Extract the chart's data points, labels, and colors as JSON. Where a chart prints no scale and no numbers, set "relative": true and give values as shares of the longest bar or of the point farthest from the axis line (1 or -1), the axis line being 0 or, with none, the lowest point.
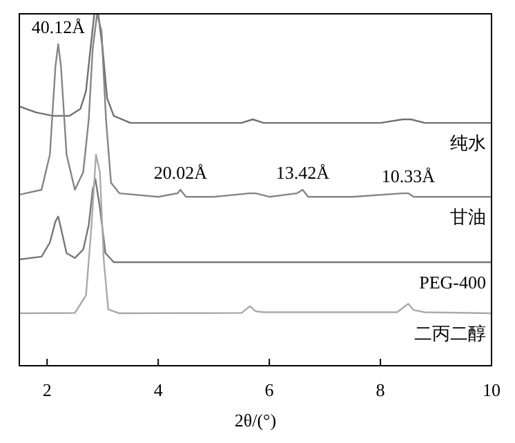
{
  "chart_data": {
    "type": "line",
    "relative": true,
    "xlabel": "2θ/(°)",
    "xlim": [
      1.5,
      10
    ],
    "xticks": [
      2,
      4,
      6,
      8,
      10
    ],
    "tick_labels": "x",
    "line_style": "solid",
    "series": [
      {
        "name": "纯水",
        "color": "#707070",
        "x": [
          1.5,
          1.8,
          2.1,
          2.4,
          2.6,
          2.7,
          2.78,
          2.85,
          2.92,
          3.0,
          3.08,
          3.2,
          3.5,
          4.5,
          5.5,
          5.7,
          5.9,
          6.5,
          8.0,
          8.4,
          8.55,
          8.8,
          9.2,
          10
        ],
        "values": [
          0.737,
          0.72,
          0.71,
          0.71,
          0.73,
          0.78,
          0.9,
          1,
          1,
          0.9,
          0.76,
          0.71,
          0.69,
          0.69,
          0.69,
          0.7,
          0.69,
          0.69,
          0.69,
          0.7,
          0.7,
          0.69,
          0.69,
          0.69
        ]
      },
      {
        "name": "甘油",
        "color": "#858585",
        "x": [
          1.5,
          1.9,
          2.05,
          2.15,
          2.2,
          2.25,
          2.35,
          2.5,
          2.65,
          2.75,
          2.82,
          2.9,
          2.98,
          3.06,
          3.15,
          3.3,
          4.0,
          4.35,
          4.4,
          4.5,
          5.0,
          5.65,
          5.75,
          6.0,
          6.5,
          6.6,
          6.7,
          7.5,
          8.4,
          8.5,
          8.6,
          10
        ],
        "values": [
          0.486,
          0.5,
          0.6,
          0.85,
          0.914,
          0.85,
          0.6,
          0.5,
          0.55,
          0.7,
          0.9,
          1,
          0.95,
          0.7,
          0.52,
          0.49,
          0.48,
          0.49,
          0.5,
          0.48,
          0.48,
          0.49,
          0.49,
          0.48,
          0.49,
          0.5,
          0.48,
          0.48,
          0.49,
          0.49,
          0.48,
          0.48
        ]
      },
      {
        "name": "PEG-400",
        "color": "#777777",
        "x": [
          1.5,
          1.9,
          2.05,
          2.15,
          2.2,
          2.25,
          2.35,
          2.5,
          2.65,
          2.75,
          2.82,
          2.87,
          2.95,
          3.05,
          3.2,
          4,
          6,
          8,
          10
        ],
        "values": [
          0.302,
          0.31,
          0.35,
          0.41,
          0.424,
          0.39,
          0.32,
          0.306,
          0.33,
          0.4,
          0.5,
          0.53,
          0.45,
          0.32,
          0.294,
          0.294,
          0.294,
          0.294,
          0.294
        ]
      },
      {
        "name": "二丙二醇",
        "color": "#aaaaaa",
        "x": [
          1.5,
          2.5,
          2.7,
          2.8,
          2.88,
          2.95,
          3.02,
          3.1,
          3.3,
          5.5,
          5.65,
          5.75,
          5.9,
          8.3,
          8.5,
          8.6,
          8.8,
          10
        ],
        "values": [
          0.149,
          0.15,
          0.2,
          0.4,
          0.6,
          0.55,
          0.3,
          0.16,
          0.149,
          0.15,
          0.169,
          0.155,
          0.152,
          0.152,
          0.176,
          0.158,
          0.152,
          0.149
        ]
      }
    ],
    "annotations": [
      {
        "text": "40.12Å",
        "x": 2.2,
        "y": 0.914
      },
      {
        "text": "20.02Å",
        "x": 4.4,
        "y": 0.5
      },
      {
        "text": "13.42Å",
        "x": 6.6,
        "y": 0.5
      },
      {
        "text": "10.33Å",
        "x": 8.5,
        "y": 0.49
      }
    ]
  }
}
